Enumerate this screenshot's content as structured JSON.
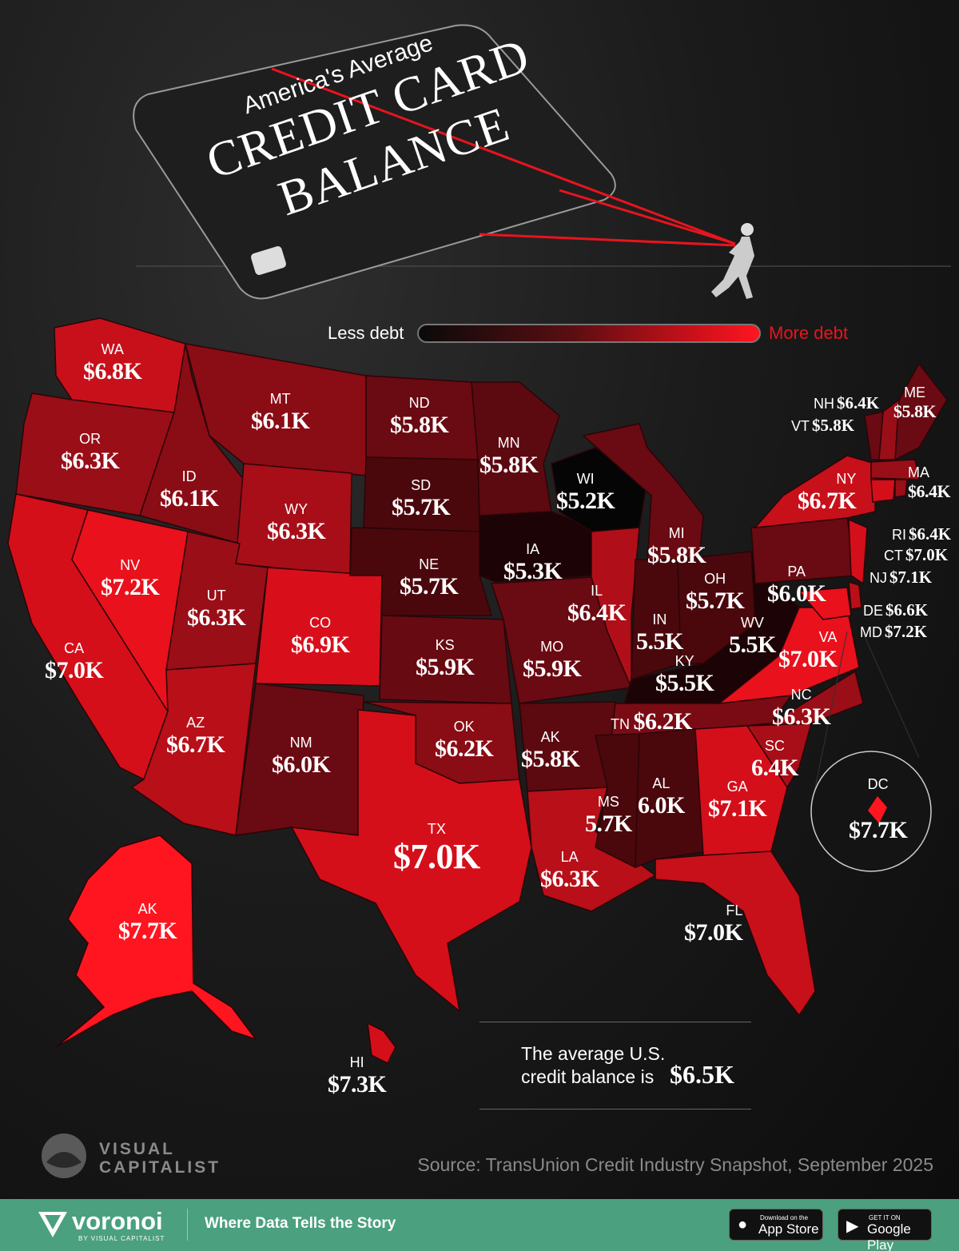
{
  "title": {
    "line1": "America's Average",
    "line2": "CREDIT CARD",
    "line3": "BALANCE"
  },
  "legend": {
    "less": "Less debt",
    "more": "More debt",
    "colors": [
      "#0a0a0a",
      "#5a0e12",
      "#c8101a",
      "#ff1520"
    ]
  },
  "states": [
    {
      "abbr": "WA",
      "value": "$6.8K"
    },
    {
      "abbr": "OR",
      "value": "$6.3K"
    },
    {
      "abbr": "CA",
      "value": "$7.0K"
    },
    {
      "abbr": "NV",
      "value": "$7.2K"
    },
    {
      "abbr": "ID",
      "value": "$6.1K"
    },
    {
      "abbr": "MT",
      "value": "$6.1K"
    },
    {
      "abbr": "WY",
      "value": "$6.3K"
    },
    {
      "abbr": "UT",
      "value": "$6.3K"
    },
    {
      "abbr": "AZ",
      "value": "$6.7K"
    },
    {
      "abbr": "CO",
      "value": "$6.9K"
    },
    {
      "abbr": "NM",
      "value": "$6.0K"
    },
    {
      "abbr": "ND",
      "value": "$5.8K"
    },
    {
      "abbr": "SD",
      "value": "$5.7K"
    },
    {
      "abbr": "NE",
      "value": "$5.7K"
    },
    {
      "abbr": "KS",
      "value": "$5.9K"
    },
    {
      "abbr": "OK",
      "value": "$6.2K"
    },
    {
      "abbr": "TX",
      "value": "$7.0K"
    },
    {
      "abbr": "MN",
      "value": "$5.8K"
    },
    {
      "abbr": "IA",
      "value": "$5.3K"
    },
    {
      "abbr": "MO",
      "value": "$5.9K"
    },
    {
      "abbr": "AK",
      "value": "$5.8K"
    },
    {
      "abbr": "LA",
      "value": "$6.3K"
    },
    {
      "abbr": "WI",
      "value": "$5.2K"
    },
    {
      "abbr": "IL",
      "value": "$6.4K"
    },
    {
      "abbr": "MI",
      "value": "$5.8K"
    },
    {
      "abbr": "IN",
      "value": "5.5K"
    },
    {
      "abbr": "OH",
      "value": "$5.7K"
    },
    {
      "abbr": "KY",
      "value": "$5.5K"
    },
    {
      "abbr": "WV",
      "value": "5.5K"
    },
    {
      "abbr": "TN",
      "value": "$6.2K"
    },
    {
      "abbr": "MS",
      "value": "5.7K"
    },
    {
      "abbr": "AL",
      "value": "6.0K"
    },
    {
      "abbr": "GA",
      "value": "$7.1K"
    },
    {
      "abbr": "FL",
      "value": "$7.0K"
    },
    {
      "abbr": "SC",
      "value": "6.4K"
    },
    {
      "abbr": "NC",
      "value": "$6.3K"
    },
    {
      "abbr": "VA",
      "value": "$7.0K"
    },
    {
      "abbr": "PA",
      "value": "$6.0K"
    },
    {
      "abbr": "NY",
      "value": "$6.7K"
    },
    {
      "abbr": "ME",
      "value": "$5.8K"
    },
    {
      "abbr": "NH",
      "value": "$6.4K"
    },
    {
      "abbr": "VT",
      "value": "$5.8K"
    },
    {
      "abbr": "MA",
      "value": "$6.4K"
    },
    {
      "abbr": "RI",
      "value": "$6.4K"
    },
    {
      "abbr": "CT",
      "value": "$7.0K"
    },
    {
      "abbr": "NJ",
      "value": "$7.1K"
    },
    {
      "abbr": "DE",
      "value": "$6.6K"
    },
    {
      "abbr": "MD",
      "value": "$7.2K"
    },
    {
      "abbr": "AK",
      "value": "$7.7K"
    },
    {
      "abbr": "HI",
      "value": "$7.3K"
    },
    {
      "abbr": "DC",
      "value": "$7.7K"
    }
  ],
  "average": {
    "line1": "The average U.S.",
    "line2": "credit balance is",
    "value": "$6.5K"
  },
  "brand": {
    "logo_line1": "VISUAL",
    "logo_line2": "CAPITALIST",
    "source": "Source: TransUnion Credit Industry Snapshot, September 2025"
  },
  "footer": {
    "brand": "voronoi",
    "brand_sub": "BY VISUAL CAPITALIST",
    "tagline": "Where Data Tells the Story",
    "app_store_small": "Download on the",
    "app_store": "App Store",
    "google_small": "GET IT ON",
    "google": "Google Play"
  }
}
